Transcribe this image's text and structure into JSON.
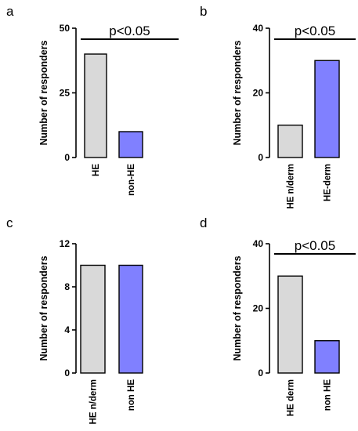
{
  "chart_data": [
    {
      "panel": "a",
      "type": "bar",
      "ylabel": "Number of responders",
      "categories": [
        "HE",
        "non-HE"
      ],
      "values": [
        40,
        10
      ],
      "colors": [
        "#d9d9d9",
        "#8080ff"
      ],
      "ylim": [
        0,
        50
      ],
      "yticks": [
        "0",
        "25",
        "50"
      ],
      "significance": "p<0.05"
    },
    {
      "panel": "b",
      "type": "bar",
      "ylabel": "Number of responders",
      "categories": [
        "HE n/derm",
        "HE-derm"
      ],
      "values": [
        10,
        30
      ],
      "colors": [
        "#d9d9d9",
        "#8080ff"
      ],
      "ylim": [
        0,
        40
      ],
      "yticks": [
        "0",
        "20",
        "40"
      ],
      "significance": "p<0.05"
    },
    {
      "panel": "c",
      "type": "bar",
      "ylabel": "Number of responders",
      "categories": [
        "HE n/derm",
        "non HE"
      ],
      "values": [
        10,
        10
      ],
      "colors": [
        "#d9d9d9",
        "#8080ff"
      ],
      "ylim": [
        0,
        12
      ],
      "yticks": [
        "0",
        "4",
        "8",
        "12"
      ],
      "significance": ""
    },
    {
      "panel": "d",
      "type": "bar",
      "ylabel": "Number of responders",
      "categories": [
        "HE derm",
        "non HE"
      ],
      "values": [
        30,
        10
      ],
      "colors": [
        "#d9d9d9",
        "#8080ff"
      ],
      "ylim": [
        0,
        40
      ],
      "yticks": [
        "0",
        "20",
        "40"
      ],
      "significance": "p<0.05"
    }
  ]
}
